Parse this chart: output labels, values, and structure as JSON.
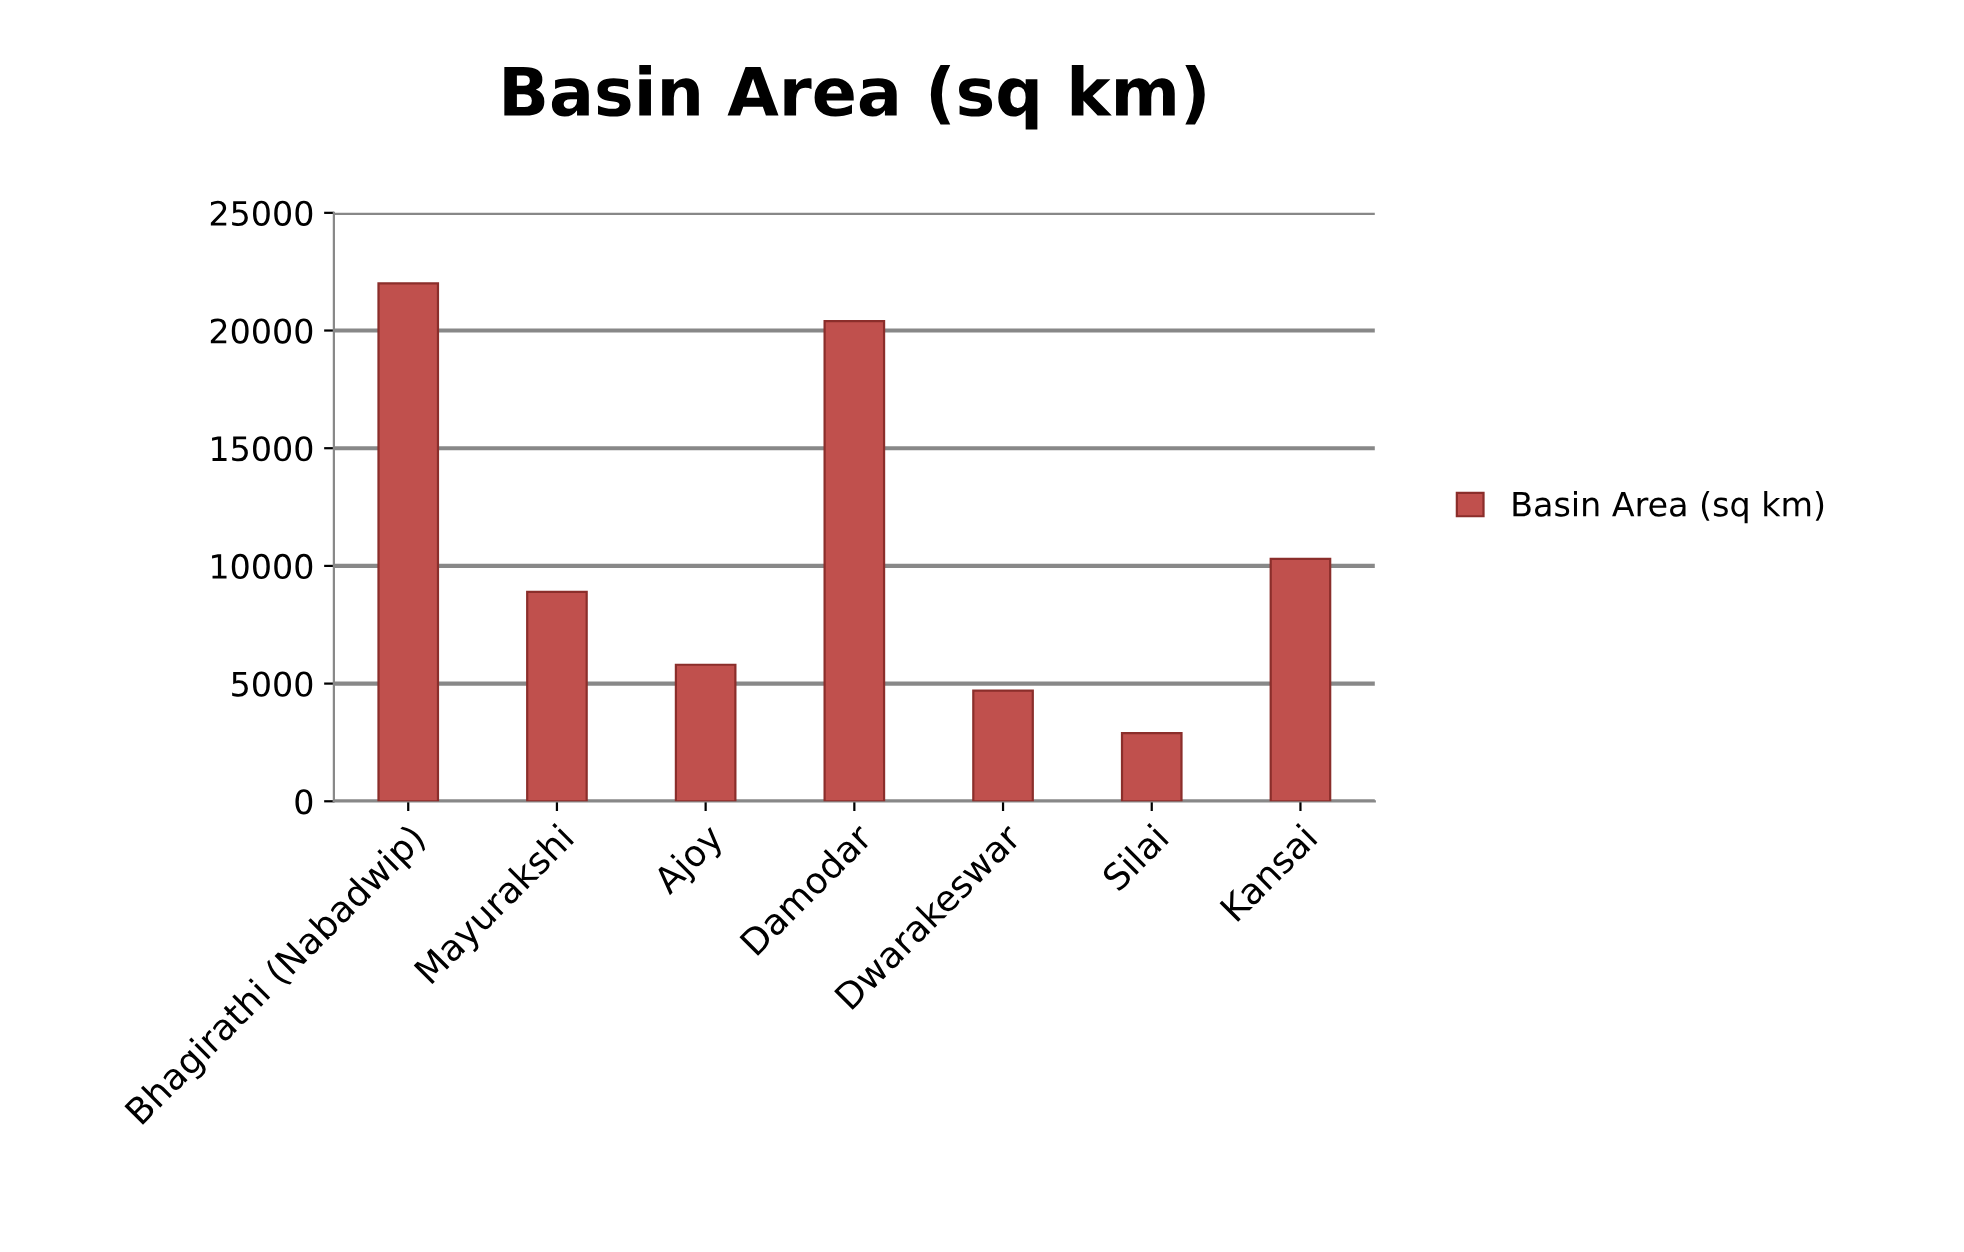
{
  "chart_data": {
    "type": "bar",
    "title": "Basin Area (sq km)",
    "categories": [
      "Bhagirathi (Nabadwip)",
      "Mayurakshi",
      "Ajoy",
      "Damodar",
      "Dwarakeswar",
      "Silai",
      "Kansai"
    ],
    "series": [
      {
        "name": "Basin Area (sq km)",
        "color": "#c0504d",
        "values": [
          22000,
          8900,
          5800,
          20400,
          4700,
          2900,
          10300
        ]
      }
    ],
    "ylim": [
      0,
      25000
    ],
    "yticks": [
      0,
      5000,
      10000,
      15000,
      20000,
      25000
    ],
    "grid": "y",
    "legend": "right"
  }
}
